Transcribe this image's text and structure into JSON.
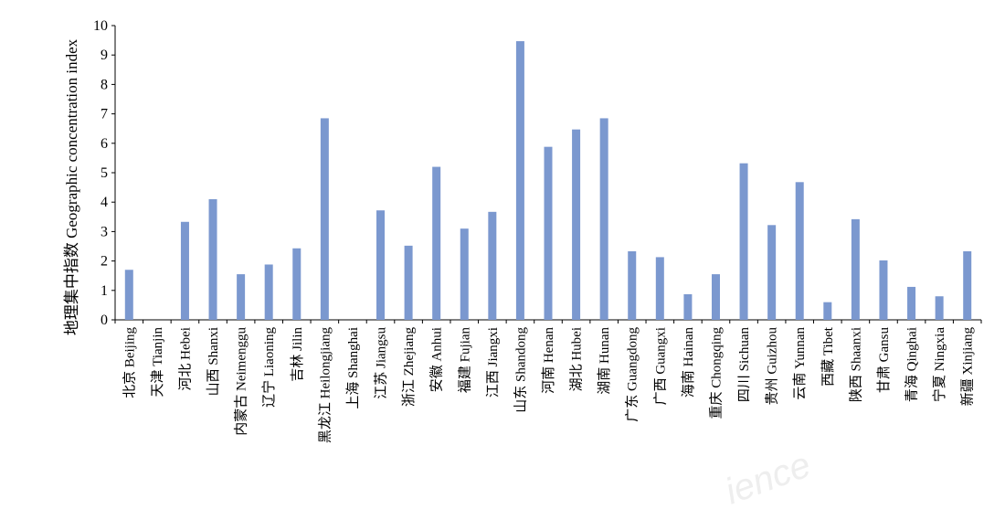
{
  "chart_data": {
    "type": "bar",
    "ylabel": "地理集中指数 Geographic concentration index",
    "xlabel": "",
    "ylim": [
      0,
      10
    ],
    "yticks": [
      0,
      1,
      2,
      3,
      4,
      5,
      6,
      7,
      8,
      9,
      10
    ],
    "grid": false,
    "legend": "none",
    "bar_color": "#7b98cf",
    "categories": [
      "北京 Beijing",
      "天津 Tianjin",
      "河北 Hebei",
      "山西 Shanxi",
      "内蒙古 Neimenggu",
      "辽宁 Liaoning",
      "吉林 Jilin",
      "黑龙江 Heilongjiang",
      "上海 Shanghai",
      "江苏 Jiangsu",
      "浙江 Zhejiang",
      "安徽 Anhui",
      "福建 Fujian",
      "江西 Jiangxi",
      "山东 Shandong",
      "河南 Henan",
      "湖北 Hubei",
      "湖南 Hunan",
      "广东 Guangdong",
      "广西 Guangxi",
      "海南 Hainan",
      "重庆 Chongqing",
      "四川 Sichuan",
      "贵州 Guizhou",
      "云南 Yunnan",
      "西藏 Tibet",
      "陕西 Shaanxi",
      "甘肃 Gansu",
      "青海 Qinghai",
      "宁夏 Ningxia",
      "新疆 Xinjiang"
    ],
    "values": [
      1.7,
      0.0,
      3.33,
      4.1,
      1.55,
      1.88,
      2.43,
      6.85,
      0.0,
      3.72,
      2.52,
      5.2,
      3.1,
      3.67,
      9.47,
      5.88,
      6.47,
      6.85,
      2.33,
      2.13,
      0.87,
      1.55,
      5.32,
      3.22,
      4.68,
      0.6,
      3.42,
      2.02,
      1.12,
      0.8,
      2.33
    ]
  },
  "watermark": "ience"
}
